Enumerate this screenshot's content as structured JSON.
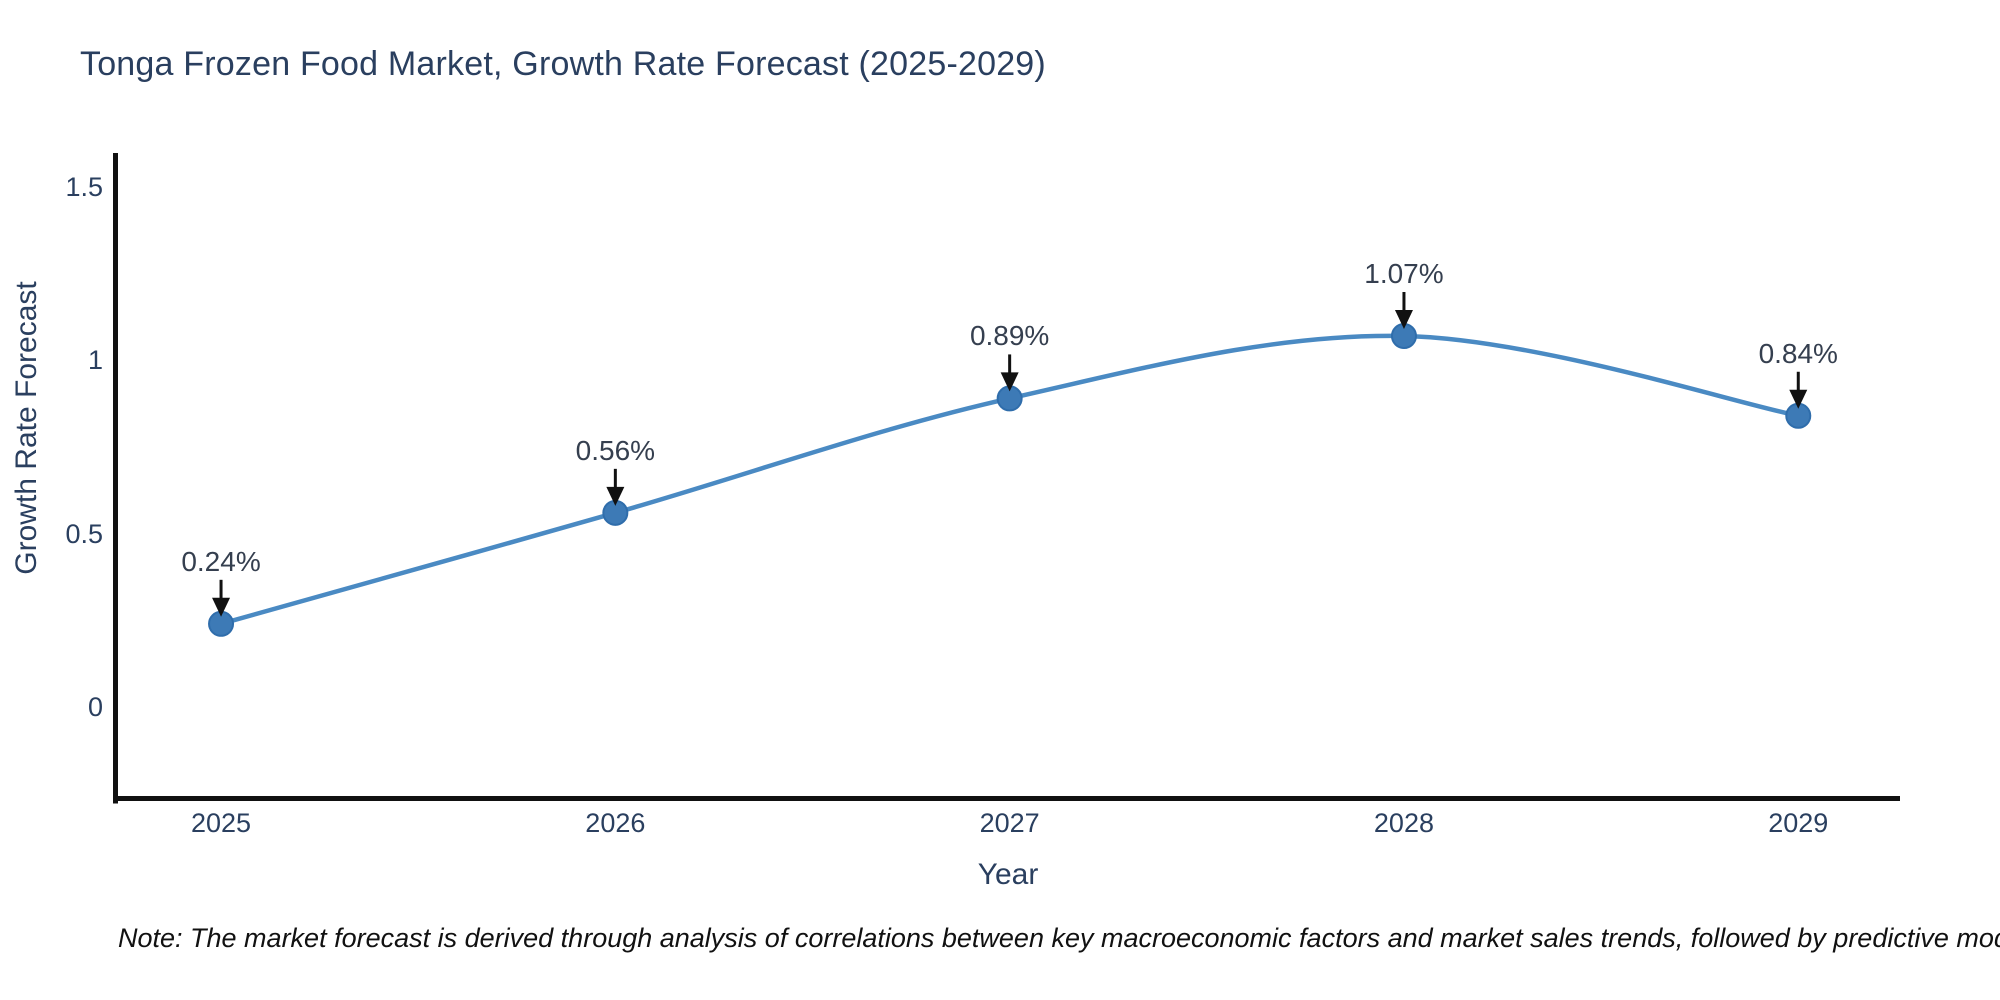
{
  "title": "Tonga Frozen Food Market, Growth Rate Forecast (2025-2029)",
  "note": "Note: The market forecast is derived through analysis of correlations between key macroeconomic factors and market sales trends, followed by predictive modeling to project future sales",
  "chart_data": {
    "type": "line",
    "title": "Tonga Frozen Food Market, Growth Rate Forecast (2025-2029)",
    "xlabel": "Year",
    "ylabel": "Growth Rate Forecast",
    "categories": [
      2025,
      2026,
      2027,
      2028,
      2029
    ],
    "values": [
      0.24,
      0.56,
      0.89,
      1.07,
      0.84
    ],
    "annotations": [
      "0.24%",
      "0.56%",
      "0.89%",
      "1.07%",
      "0.84%"
    ],
    "yticks": [
      0,
      0.5,
      1,
      1.5
    ],
    "ytick_labels": [
      "0",
      "0.5",
      "1",
      "1.5"
    ],
    "ylim": [
      -0.271,
      1.592
    ],
    "xlim": [
      2024.726,
      2029.258
    ],
    "grid": false,
    "legend": "none",
    "line_shape": "spline",
    "annotation_style": "arrow-down-to-point",
    "colors": {
      "line": "#4a8ac3",
      "marker": "#3d7ab6",
      "marker_edge": "#2f6dab",
      "axis": "#111111",
      "text": "#2a3f5f",
      "arrow": "#111111",
      "background": "#ffffff"
    }
  }
}
